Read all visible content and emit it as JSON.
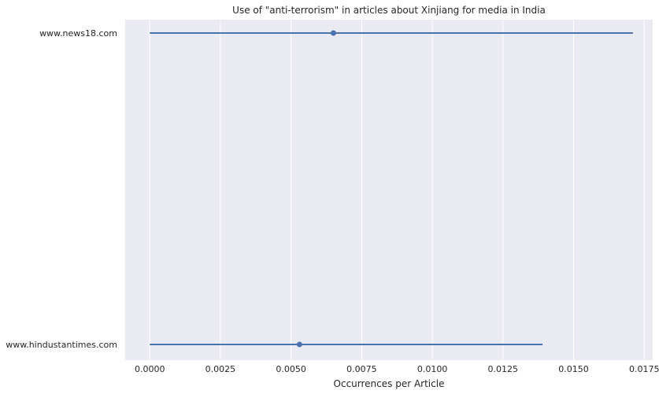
{
  "chart_data": {
    "type": "point-range",
    "title": "Use of \"anti-terrorism\" in articles about Xinjiang for media in India",
    "xlabel": "Occurrences per Article",
    "ylabel": "",
    "xlim": [
      -0.00087,
      0.0178
    ],
    "x_ticks": [
      "0.0000",
      "0.0025",
      "0.0050",
      "0.0075",
      "0.0100",
      "0.0125",
      "0.0150",
      "0.0175"
    ],
    "x_tick_values": [
      0.0,
      0.0025,
      0.005,
      0.0075,
      0.01,
      0.0125,
      0.015,
      0.0175
    ],
    "categories": [
      "www.news18.com",
      "www.hindustantimes.com"
    ],
    "series": [
      {
        "color": "#4c72b0",
        "points": [
          {
            "category": "www.news18.com",
            "value": 0.0065,
            "ci_low": 0.0,
            "ci_high": 0.0171
          },
          {
            "category": "www.hindustantimes.com",
            "value": 0.0053,
            "ci_low": 0.0,
            "ci_high": 0.0139
          }
        ]
      }
    ],
    "grid": true,
    "background_color": "#eaeaf2",
    "grid_color": "#ffffff",
    "legend": "none"
  }
}
